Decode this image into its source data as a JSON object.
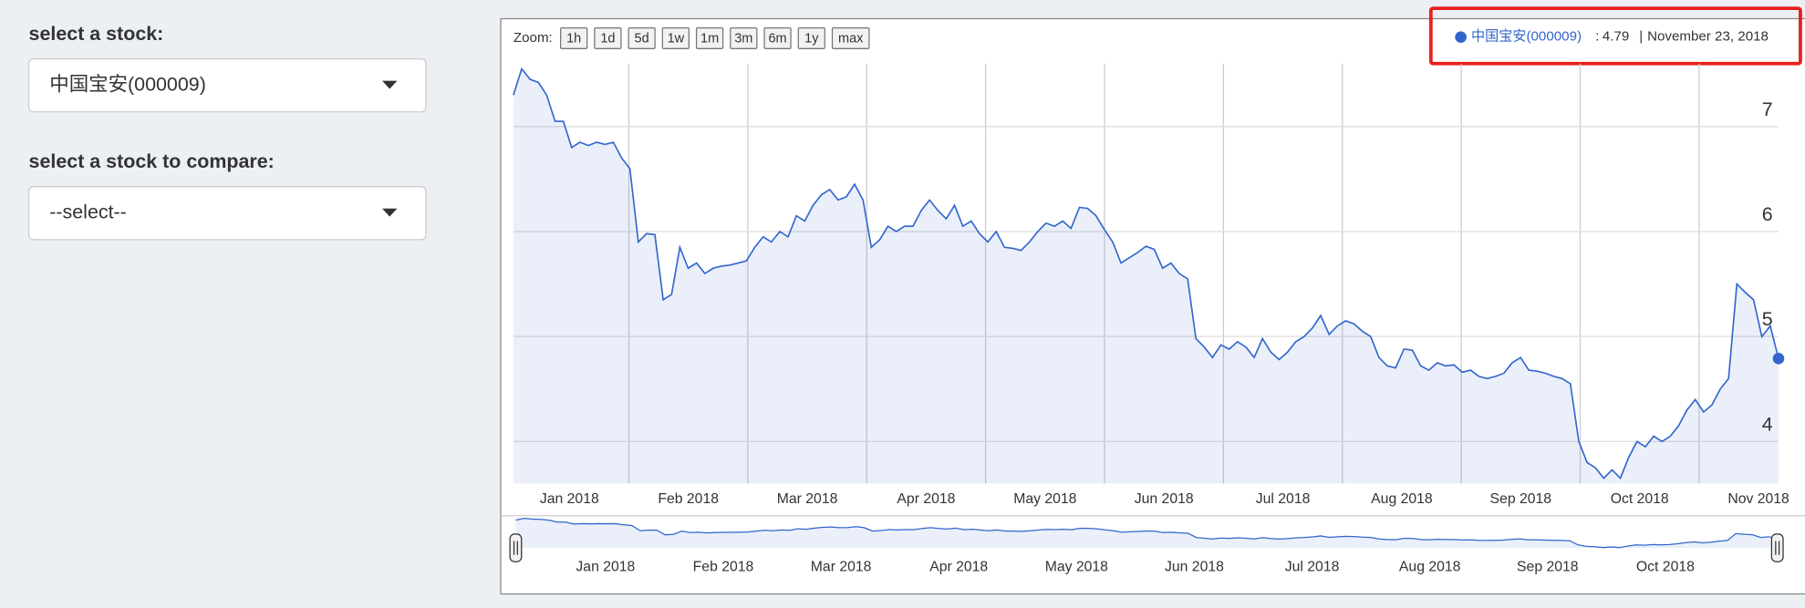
{
  "sidebar": {
    "stock_label": "select a stock:",
    "compare_label": "select a stock to compare:",
    "compare_placeholder": "--select--"
  },
  "chart_data": {
    "type": "line",
    "zoom_label": "Zoom:",
    "zoom_buttons": [
      "1h",
      "1d",
      "5d",
      "1w",
      "1m",
      "3m",
      "6m",
      "1y",
      "max"
    ],
    "legend": {
      "value": 4.79,
      "date": "November 23, 2018"
    },
    "xtick_labels": [
      "Jan 2018",
      "Feb 2018",
      "Mar 2018",
      "Apr 2018",
      "May 2018",
      "Jun 2018",
      "Jul 2018",
      "Aug 2018",
      "Sep 2018",
      "Oct 2018",
      "Nov 2018"
    ],
    "ylim": [
      3.6,
      7.6
    ],
    "yticks": [
      4,
      5,
      6,
      7
    ],
    "grid": true,
    "series": [
      {
        "name": "中国宝安(000009)",
        "color": "#3366cc",
        "values": [
          7.3,
          7.55,
          7.45,
          7.42,
          7.3,
          7.05,
          7.05,
          6.8,
          6.85,
          6.82,
          6.85,
          6.83,
          6.85,
          6.7,
          6.6,
          5.9,
          5.98,
          5.97,
          5.35,
          5.4,
          5.85,
          5.65,
          5.7,
          5.6,
          5.65,
          5.67,
          5.68,
          5.7,
          5.72,
          5.85,
          5.95,
          5.9,
          6.0,
          5.95,
          6.15,
          6.1,
          6.25,
          6.35,
          6.4,
          6.3,
          6.33,
          6.45,
          6.3,
          5.85,
          5.92,
          6.05,
          6.0,
          6.05,
          6.05,
          6.2,
          6.3,
          6.2,
          6.12,
          6.25,
          6.05,
          6.1,
          5.98,
          5.9,
          6.0,
          5.85,
          5.84,
          5.82,
          5.9,
          6.0,
          6.08,
          6.05,
          6.1,
          6.03,
          6.23,
          6.22,
          6.15,
          6.02,
          5.9,
          5.7,
          5.75,
          5.8,
          5.86,
          5.83,
          5.65,
          5.7,
          5.6,
          5.55,
          4.98,
          4.9,
          4.8,
          4.92,
          4.88,
          4.95,
          4.9,
          4.8,
          4.98,
          4.85,
          4.78,
          4.85,
          4.95,
          5.0,
          5.08,
          5.2,
          5.02,
          5.1,
          5.15,
          5.12,
          5.05,
          5.0,
          4.8,
          4.72,
          4.7,
          4.88,
          4.87,
          4.72,
          4.68,
          4.75,
          4.72,
          4.73,
          4.66,
          4.68,
          4.62,
          4.6,
          4.62,
          4.65,
          4.75,
          4.8,
          4.68,
          4.67,
          4.65,
          4.62,
          4.6,
          4.55,
          4.0,
          3.8,
          3.75,
          3.65,
          3.73,
          3.65,
          3.85,
          4.0,
          3.95,
          4.05,
          4.0,
          4.05,
          4.15,
          4.3,
          4.4,
          4.28,
          4.35,
          4.5,
          4.6,
          5.5,
          5.42,
          5.35,
          5.0,
          5.1,
          4.79
        ]
      }
    ]
  }
}
